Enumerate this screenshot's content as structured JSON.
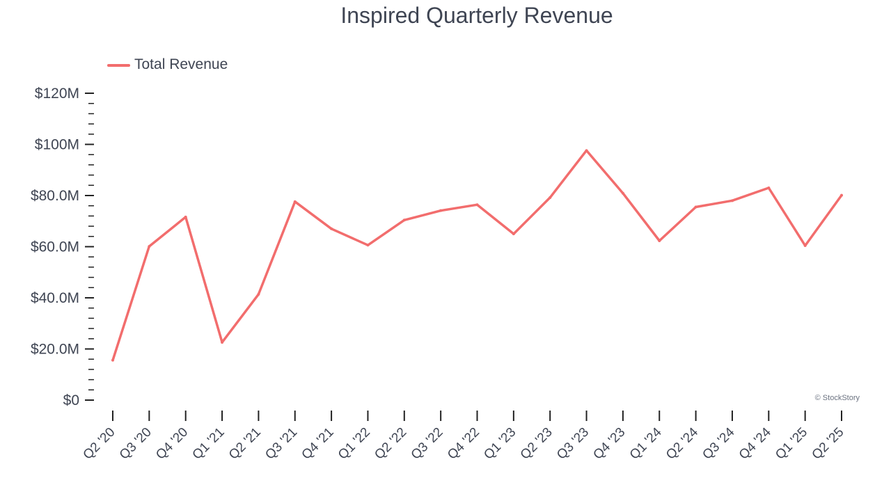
{
  "chart_data": {
    "type": "line",
    "title": "Inspired Quarterly Revenue",
    "xlabel": "",
    "ylabel": "",
    "categories": [
      "Q2 '20",
      "Q3 '20",
      "Q4 '20",
      "Q1 '21",
      "Q2 '21",
      "Q3 '21",
      "Q4 '21",
      "Q1 '22",
      "Q2 '22",
      "Q3 '22",
      "Q4 '22",
      "Q1 '23",
      "Q2 '23",
      "Q3 '23",
      "Q4 '23",
      "Q1 '24",
      "Q2 '24",
      "Q3 '24",
      "Q4 '24",
      "Q1 '25",
      "Q2 '25"
    ],
    "series": [
      {
        "name": "Total Revenue",
        "color": "#f26d6d",
        "values": [
          15.6,
          60.1,
          71.6,
          22.6,
          41.4,
          77.6,
          67.0,
          60.6,
          70.4,
          74.1,
          76.4,
          65.0,
          79.2,
          97.6,
          80.9,
          62.3,
          75.5,
          78.0,
          83.0,
          60.4,
          80.1
        ]
      }
    ],
    "ylim": [
      0,
      120
    ],
    "yticks": [
      0,
      20,
      40,
      60,
      80,
      100,
      120
    ],
    "ytick_labels": [
      "$0",
      "$20.0M",
      "$40.0M",
      "$60.0M",
      "$80.0M",
      "$100M",
      "$120M"
    ],
    "grid": false,
    "legend_position": "top-left",
    "credit": "© StockStory"
  }
}
